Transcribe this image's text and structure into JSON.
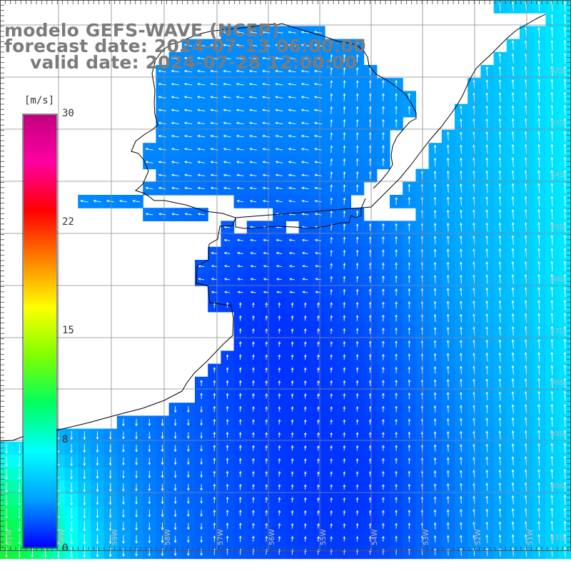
{
  "title": {
    "model": "modelo GEFS-WAVE (NCEP)",
    "forecast_date": "forecast date: 2024-07-13 06:00:00",
    "valid_date": "valid date: 2024-07-28 12:00:00"
  },
  "colorbar": {
    "unit": "[m/s]",
    "ticks": [
      {
        "value": 30,
        "label": "30"
      },
      {
        "value": 22,
        "label": "22"
      },
      {
        "value": 15,
        "label": "15"
      },
      {
        "value": 8,
        "label": "8"
      },
      {
        "value": 0,
        "label": "0"
      }
    ],
    "colors": [
      "#0000ff",
      "#00a0ff",
      "#00ffff",
      "#00ff60",
      "#80ff00",
      "#ffff00",
      "#ff8000",
      "#ff0000",
      "#ff00a0",
      "#c00080"
    ]
  },
  "lat_labels": [
    "32S",
    "33S",
    "34S",
    "35S",
    "36S",
    "37S",
    "38S",
    "39S",
    "40S",
    "41S"
  ],
  "lon_labels": [
    "61W",
    "60W",
    "59W",
    "58W",
    "57W",
    "56W",
    "55W",
    "54W",
    "53W",
    "52W",
    "51W"
  ],
  "colors": {
    "land": "#ffffff",
    "coast": "#000000",
    "grid": "#808080",
    "title": "#7b7b7b"
  }
}
